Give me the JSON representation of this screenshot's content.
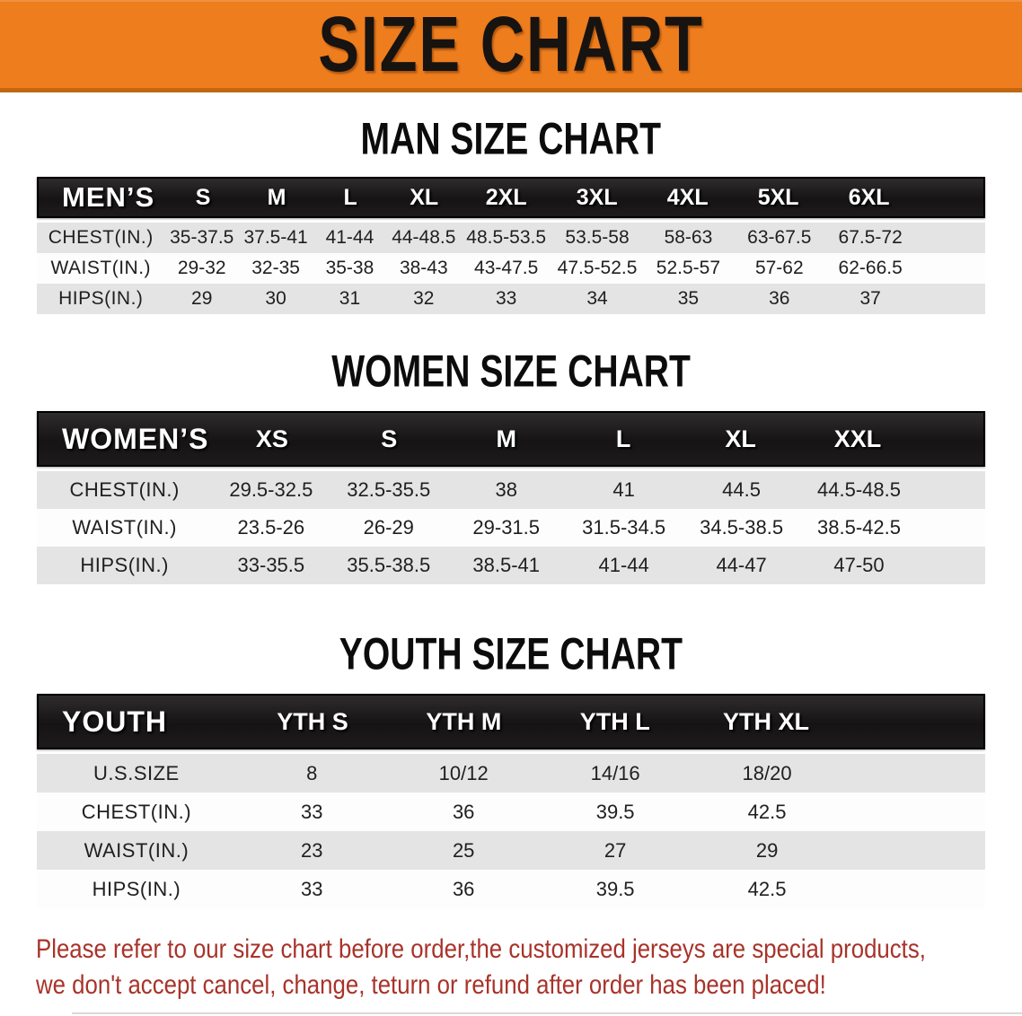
{
  "banner": {
    "title": "SIZE CHART"
  },
  "colors": {
    "banner_bg": "#ee7d1e",
    "banner_edge": "#c2660f",
    "header_bar_bg": "#1a1a1a",
    "header_bar_text": "#ffffff",
    "row_gray": "#e4e4e4",
    "row_white": "#fdfdfd",
    "body_text": "#1f1f1f",
    "note_red": "#a8332a"
  },
  "sections": [
    {
      "id": "men",
      "heading": "MAN SIZE CHART",
      "table": {
        "label": "MEN’S",
        "columns": [
          "S",
          "M",
          "L",
          "XL",
          "2XL",
          "3XL",
          "4XL",
          "5XL",
          "6XL"
        ],
        "rows": [
          {
            "key": "chest",
            "label": "CHEST(IN.)",
            "shade": "gray",
            "values": [
              "35-37.5",
              "37.5-41",
              "41-44",
              "44-48.5",
              "48.5-53.5",
              "53.5-58",
              "58-63",
              "63-67.5",
              "67.5-72"
            ]
          },
          {
            "key": "waist",
            "label": "WAIST(IN.)",
            "shade": "white",
            "values": [
              "29-32",
              "32-35",
              "35-38",
              "38-43",
              "43-47.5",
              "47.5-52.5",
              "52.5-57",
              "57-62",
              "62-66.5"
            ]
          },
          {
            "key": "hips",
            "label": "HIPS(IN.)",
            "shade": "gray",
            "values": [
              "29",
              "30",
              "31",
              "32",
              "33",
              "34",
              "35",
              "36",
              "37"
            ]
          }
        ]
      }
    },
    {
      "id": "women",
      "heading": "WOMEN SIZE CHART",
      "table": {
        "label": "WOMEN’S",
        "columns": [
          "XS",
          "S",
          "M",
          "L",
          "XL",
          "XXL"
        ],
        "rows": [
          {
            "key": "chest",
            "label": "CHEST(IN.)",
            "shade": "gray",
            "values": [
              "29.5-32.5",
              "32.5-35.5",
              "38",
              "41",
              "44.5",
              "44.5-48.5"
            ]
          },
          {
            "key": "waist",
            "label": "WAIST(IN.)",
            "shade": "white",
            "values": [
              "23.5-26",
              "26-29",
              "29-31.5",
              "31.5-34.5",
              "34.5-38.5",
              "38.5-42.5"
            ]
          },
          {
            "key": "hips",
            "label": "HIPS(IN.)",
            "shade": "gray",
            "values": [
              "33-35.5",
              "35.5-38.5",
              "38.5-41",
              "41-44",
              "44-47",
              "47-50"
            ]
          }
        ]
      }
    },
    {
      "id": "youth",
      "heading": "YOUTH SIZE CHART",
      "table": {
        "label": "YOUTH",
        "columns": [
          "YTH S",
          "YTH M",
          "YTH L",
          "YTH XL"
        ],
        "rows": [
          {
            "key": "us-size",
            "label": "U.S.SIZE",
            "shade": "gray",
            "values": [
              "8",
              "10/12",
              "14/16",
              "18/20"
            ]
          },
          {
            "key": "chest",
            "label": "CHEST(IN.)",
            "shade": "white",
            "values": [
              "33",
              "36",
              "39.5",
              "42.5"
            ]
          },
          {
            "key": "waist",
            "label": "WAIST(IN.)",
            "shade": "gray",
            "values": [
              "23",
              "25",
              "27",
              "29"
            ]
          },
          {
            "key": "hips",
            "label": "HIPS(IN.)",
            "shade": "white",
            "values": [
              "33",
              "36",
              "39.5",
              "42.5"
            ]
          }
        ]
      }
    }
  ],
  "note": {
    "line1": "Please refer to our size chart before order,the customized jerseys are special products,",
    "line2": "we don't accept cancel, change, teturn or refund after order has been placed!"
  }
}
